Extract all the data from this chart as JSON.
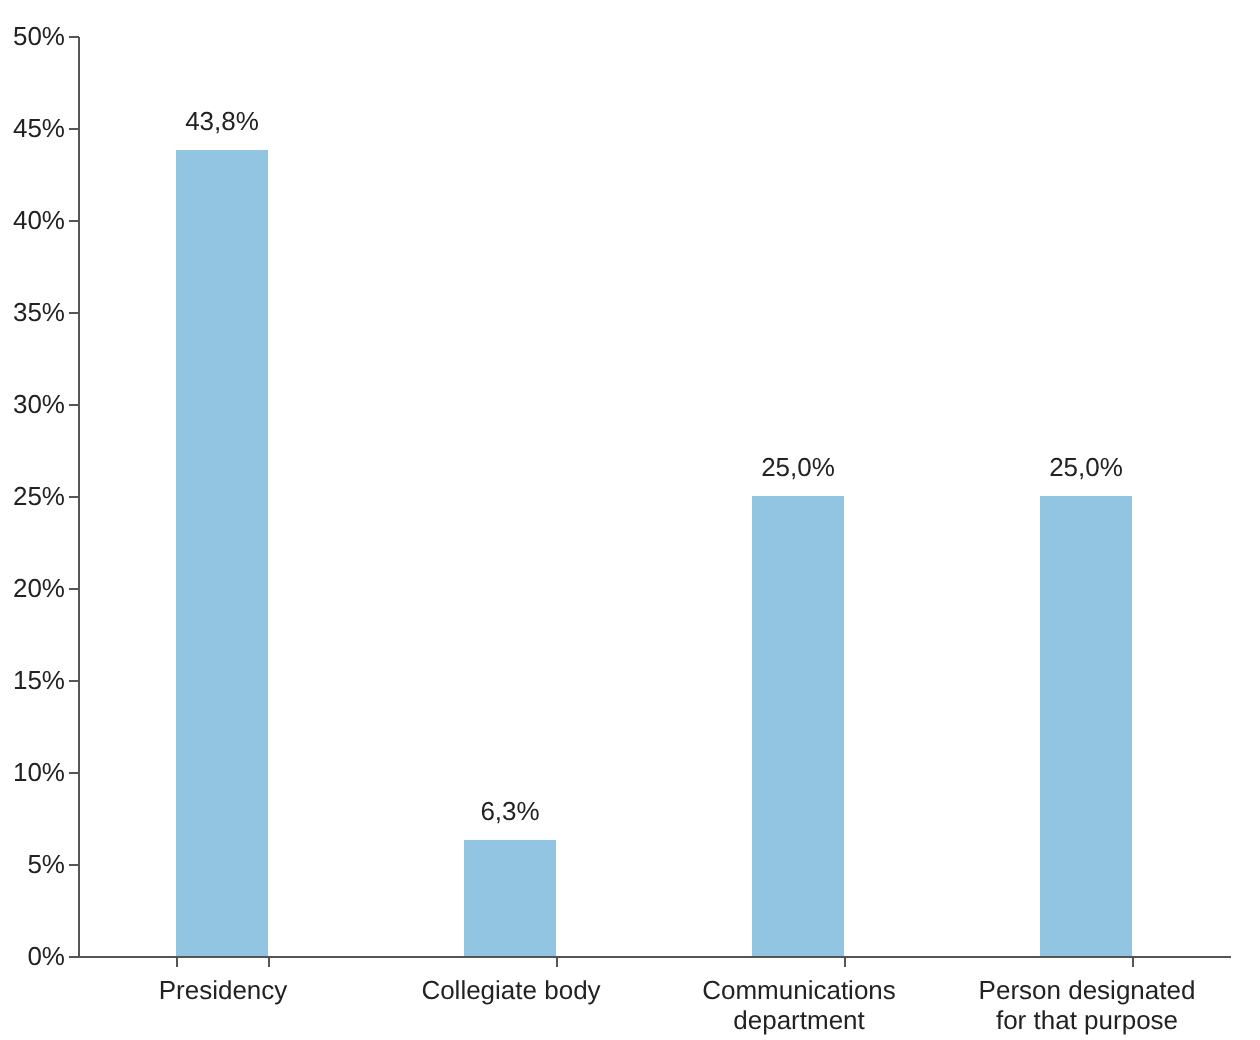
{
  "chart_data": {
    "type": "bar",
    "categories": [
      "Presidency",
      "Collegiate body",
      "Communications\ndepartment",
      "Person designated\nfor that purpose"
    ],
    "values": [
      43.8,
      6.3,
      25.0,
      25.0
    ],
    "value_labels": [
      "43,8%",
      "6,3%",
      "25,0%",
      "25,0%"
    ],
    "color": "#92c5e2",
    "ylim": [
      0,
      50
    ],
    "yticks": [
      {
        "value": 0,
        "label": "0%"
      },
      {
        "value": 5,
        "label": "5%"
      },
      {
        "value": 10,
        "label": "10%"
      },
      {
        "value": 15,
        "label": "15%"
      },
      {
        "value": 20,
        "label": "20%"
      },
      {
        "value": 25,
        "label": "25%"
      },
      {
        "value": 30,
        "label": "30%"
      },
      {
        "value": 35,
        "label": "35%"
      },
      {
        "value": 40,
        "label": "40%"
      },
      {
        "value": 45,
        "label": "45%"
      },
      {
        "value": 50,
        "label": "50%"
      }
    ],
    "grid": false
  }
}
